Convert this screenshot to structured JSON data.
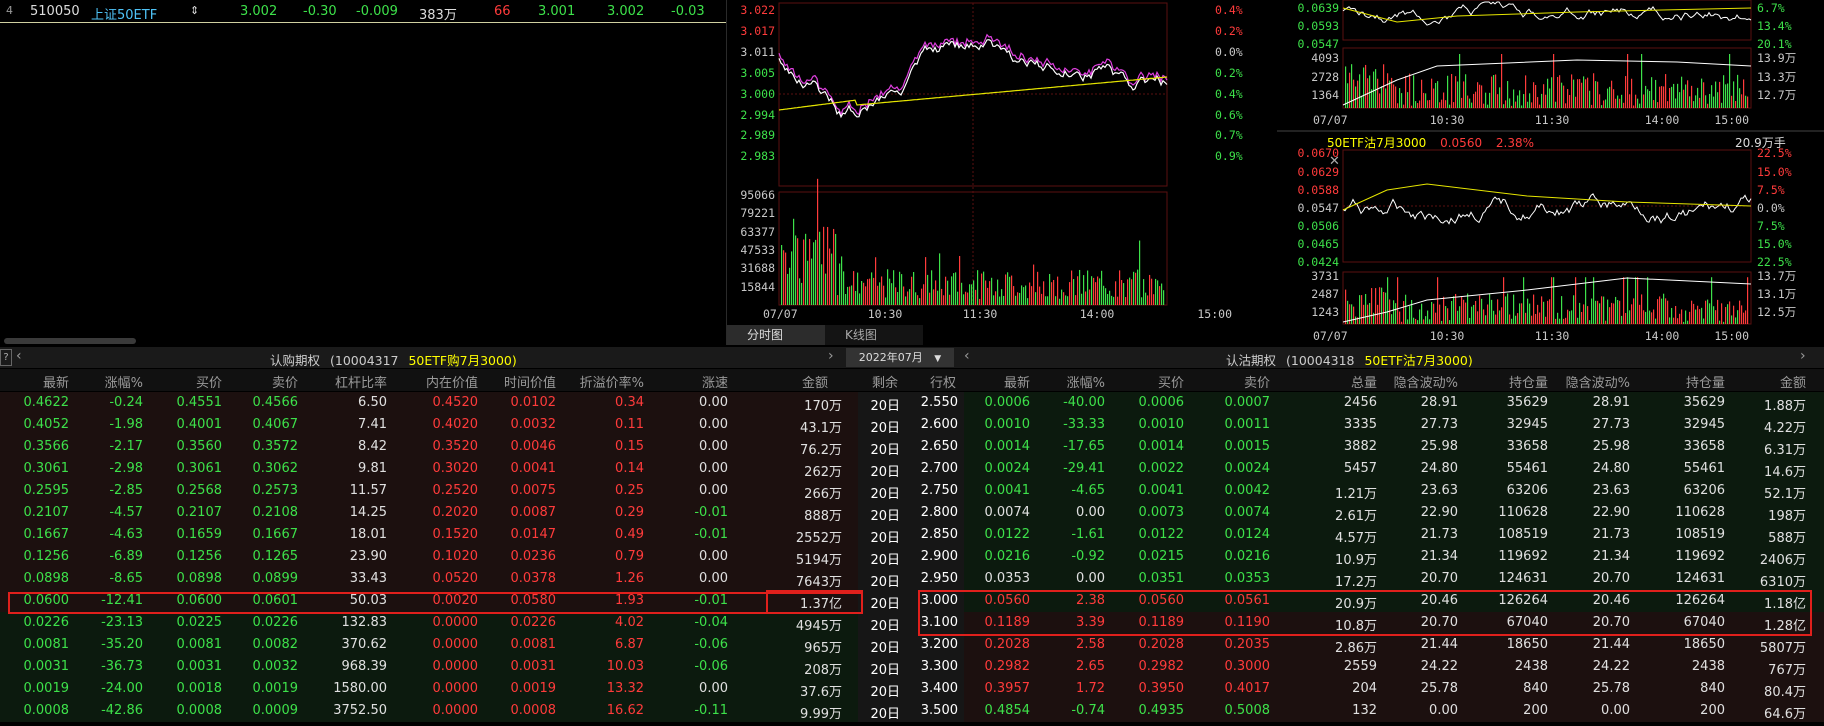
{
  "ticker": {
    "row_num": "4",
    "code": "510050",
    "name": "上证50ETF",
    "arrow": "⇕",
    "price": "3.002",
    "change_pct": "-0.30",
    "change": "-0.009",
    "volume": "383万",
    "lots": "66",
    "bid": "3.001",
    "ask": "3.002",
    "extra": "-0.03"
  },
  "main_chart": {
    "price_ticks": [
      "3.022",
      "3.017",
      "3.011",
      "3.005",
      "3.000",
      "2.994",
      "2.989",
      "2.983"
    ],
    "pct_ticks": [
      "0.4%",
      "0.2%",
      "0.0%",
      "0.2%",
      "0.4%",
      "0.6%",
      "0.7%",
      "0.9%"
    ],
    "vol_ticks": [
      "95066",
      "79221",
      "63377",
      "47533",
      "31688",
      "15844"
    ],
    "time_ticks": [
      "07/07",
      "10:30",
      "11:30",
      "14:00",
      "15:00"
    ],
    "tabs": [
      "分时图",
      "K线图"
    ]
  },
  "right_top": {
    "price_ticks": [
      "0.0639",
      "0.0593",
      "0.0547"
    ],
    "pct_ticks": [
      "6.7%",
      "13.4%",
      "20.1%"
    ],
    "vol_ticks": [
      "4093",
      "2728",
      "1364"
    ],
    "vol_ticks_right": [
      "13.9万",
      "13.3万",
      "12.7万"
    ],
    "time_ticks": [
      "07/07",
      "10:30",
      "11:30",
      "14:00",
      "15:00"
    ]
  },
  "right_bottom": {
    "title": "50ETF沽7月3000",
    "price": "0.0560",
    "pct": "2.38%",
    "volume": "20.9万手",
    "price_ticks": [
      "0.0670",
      "0.0629",
      "0.0588",
      "0.0547",
      "0.0506",
      "0.0465",
      "0.0424"
    ],
    "pct_ticks": [
      "22.5%",
      "15.0%",
      "7.5%",
      "0.0%",
      "7.5%",
      "15.0%",
      "22.5%"
    ],
    "vol_ticks": [
      "3731",
      "2487",
      "1243"
    ],
    "vol_ticks_right": [
      "13.7万",
      "13.1万",
      "12.5万"
    ],
    "time_ticks": [
      "07/07",
      "10:30",
      "11:30",
      "14:00",
      "15:00"
    ]
  },
  "board_header": {
    "left_title": "认购期权",
    "left_code": "(10004317",
    "left_name": "50ETF购7月3000)",
    "month": "2022年07月",
    "right_title": "认沽期权",
    "right_code": "(10004318",
    "right_name": "50ETF沽7月3000)"
  },
  "columns": {
    "left": [
      "最新",
      "涨幅%",
      "买价",
      "卖价",
      "杠杆比率",
      "内在价值",
      "时间价值",
      "折溢价率%",
      "涨速",
      "金额"
    ],
    "mid": [
      "剩余",
      "行权"
    ],
    "right": [
      "最新",
      "涨幅%",
      "买价",
      "卖价",
      "总量",
      "隐含波动%",
      "持仓量",
      "隐含波动%",
      "持仓量",
      "金额"
    ]
  },
  "rows": [
    {
      "c": [
        "0.4622",
        "-0.24",
        "0.4551",
        "0.4566",
        "6.50",
        "0.4520",
        "0.0102",
        "0.34",
        "0.00",
        "170万"
      ],
      "days": "20日",
      "strike": "2.550",
      "p": [
        "0.0006",
        "-40.00",
        "0.0006",
        "0.0007",
        "2456",
        "28.91",
        "35629",
        "28.91",
        "35629",
        "1.88万"
      ]
    },
    {
      "c": [
        "0.4052",
        "-1.98",
        "0.4001",
        "0.4067",
        "7.41",
        "0.4020",
        "0.0032",
        "0.11",
        "0.00",
        "43.1万"
      ],
      "days": "20日",
      "strike": "2.600",
      "p": [
        "0.0010",
        "-33.33",
        "0.0010",
        "0.0011",
        "3335",
        "27.73",
        "32945",
        "27.73",
        "32945",
        "4.22万"
      ]
    },
    {
      "c": [
        "0.3566",
        "-2.17",
        "0.3560",
        "0.3572",
        "8.42",
        "0.3520",
        "0.0046",
        "0.15",
        "0.00",
        "76.2万"
      ],
      "days": "20日",
      "strike": "2.650",
      "p": [
        "0.0014",
        "-17.65",
        "0.0014",
        "0.0015",
        "3882",
        "25.98",
        "33658",
        "25.98",
        "33658",
        "6.31万"
      ]
    },
    {
      "c": [
        "0.3061",
        "-2.98",
        "0.3061",
        "0.3062",
        "9.81",
        "0.3020",
        "0.0041",
        "0.14",
        "0.00",
        "262万"
      ],
      "days": "20日",
      "strike": "2.700",
      "p": [
        "0.0024",
        "-29.41",
        "0.0022",
        "0.0024",
        "5457",
        "24.80",
        "55461",
        "24.80",
        "55461",
        "14.6万"
      ]
    },
    {
      "c": [
        "0.2595",
        "-2.85",
        "0.2568",
        "0.2573",
        "11.57",
        "0.2520",
        "0.0075",
        "0.25",
        "0.00",
        "266万"
      ],
      "days": "20日",
      "strike": "2.750",
      "p": [
        "0.0041",
        "-4.65",
        "0.0041",
        "0.0042",
        "1.21万",
        "23.63",
        "63206",
        "23.63",
        "63206",
        "52.1万"
      ]
    },
    {
      "c": [
        "0.2107",
        "-4.57",
        "0.2107",
        "0.2108",
        "14.25",
        "0.2020",
        "0.0087",
        "0.29",
        "-0.01",
        "888万"
      ],
      "days": "20日",
      "strike": "2.800",
      "p": [
        "0.0074",
        "0.00",
        "0.0073",
        "0.0074",
        "2.61万",
        "22.90",
        "110628",
        "22.90",
        "110628",
        "198万"
      ]
    },
    {
      "c": [
        "0.1667",
        "-4.63",
        "0.1659",
        "0.1667",
        "18.01",
        "0.1520",
        "0.0147",
        "0.49",
        "-0.01",
        "2552万"
      ],
      "days": "20日",
      "strike": "2.850",
      "p": [
        "0.0122",
        "-1.61",
        "0.0122",
        "0.0124",
        "4.57万",
        "21.73",
        "108519",
        "21.73",
        "108519",
        "588万"
      ]
    },
    {
      "c": [
        "0.1256",
        "-6.89",
        "0.1256",
        "0.1265",
        "23.90",
        "0.1020",
        "0.0236",
        "0.79",
        "0.00",
        "5194万"
      ],
      "days": "20日",
      "strike": "2.900",
      "p": [
        "0.0216",
        "-0.92",
        "0.0215",
        "0.0216",
        "10.9万",
        "21.34",
        "119692",
        "21.34",
        "119692",
        "2406万"
      ]
    },
    {
      "c": [
        "0.0898",
        "-8.65",
        "0.0898",
        "0.0899",
        "33.43",
        "0.0520",
        "0.0378",
        "1.26",
        "0.00",
        "7643万"
      ],
      "days": "20日",
      "strike": "2.950",
      "p": [
        "0.0353",
        "0.00",
        "0.0351",
        "0.0353",
        "17.2万",
        "20.70",
        "124631",
        "20.70",
        "124631",
        "6310万"
      ]
    },
    {
      "c": [
        "0.0600",
        "-12.41",
        "0.0600",
        "0.0601",
        "50.03",
        "0.0020",
        "0.0580",
        "1.93",
        "-0.01",
        "1.37亿"
      ],
      "days": "20日",
      "strike": "3.000",
      "p": [
        "0.0560",
        "2.38",
        "0.0560",
        "0.0561",
        "20.9万",
        "20.46",
        "126264",
        "20.46",
        "126264",
        "1.18亿"
      ]
    },
    {
      "c": [
        "0.0226",
        "-23.13",
        "0.0225",
        "0.0226",
        "132.83",
        "0.0000",
        "0.0226",
        "4.02",
        "-0.04",
        "4945万"
      ],
      "days": "20日",
      "strike": "3.100",
      "p": [
        "0.1189",
        "3.39",
        "0.1189",
        "0.1190",
        "10.8万",
        "20.70",
        "67040",
        "20.70",
        "67040",
        "1.28亿"
      ]
    },
    {
      "c": [
        "0.0081",
        "-35.20",
        "0.0081",
        "0.0082",
        "370.62",
        "0.0000",
        "0.0081",
        "6.87",
        "-0.06",
        "965万"
      ],
      "days": "20日",
      "strike": "3.200",
      "p": [
        "0.2028",
        "2.58",
        "0.2028",
        "0.2035",
        "2.86万",
        "21.44",
        "18650",
        "21.44",
        "18650",
        "5807万"
      ]
    },
    {
      "c": [
        "0.0031",
        "-36.73",
        "0.0031",
        "0.0032",
        "968.39",
        "0.0000",
        "0.0031",
        "10.03",
        "-0.06",
        "208万"
      ],
      "days": "20日",
      "strike": "3.300",
      "p": [
        "0.2982",
        "2.65",
        "0.2982",
        "0.3000",
        "2559",
        "24.22",
        "2438",
        "24.22",
        "2438",
        "767万"
      ]
    },
    {
      "c": [
        "0.0019",
        "-24.00",
        "0.0018",
        "0.0019",
        "1580.00",
        "0.0000",
        "0.0019",
        "13.32",
        "0.00",
        "37.6万"
      ],
      "days": "20日",
      "strike": "3.400",
      "p": [
        "0.3957",
        "1.72",
        "0.3950",
        "0.4017",
        "204",
        "25.78",
        "840",
        "25.78",
        "840",
        "80.4万"
      ]
    },
    {
      "c": [
        "0.0008",
        "-42.86",
        "0.0008",
        "0.0009",
        "3752.50",
        "0.0000",
        "0.0008",
        "16.62",
        "-0.11",
        "9.99万"
      ],
      "days": "20日",
      "strike": "3.500",
      "p": [
        "0.4854",
        "-0.74",
        "0.4935",
        "0.5008",
        "132",
        "0.00",
        "200",
        "0.00",
        "200",
        "64.6万"
      ]
    }
  ],
  "colors": {
    "up": "#ff3b3b",
    "down": "#3de14a",
    "line": "#ffffff",
    "avg": "#e6e600",
    "magenta": "#e040e0",
    "highlight": "#e0201c"
  }
}
